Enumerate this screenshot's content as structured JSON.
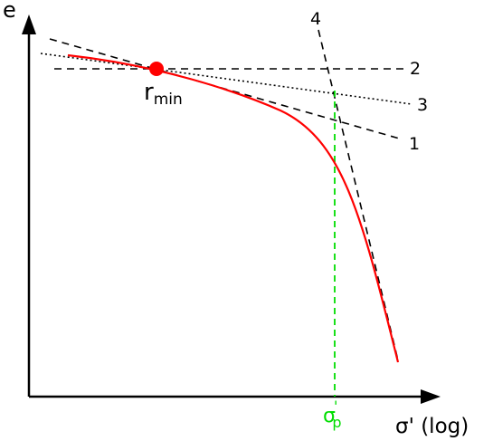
{
  "axes": {
    "y_label": "e",
    "x_label": "σ' (log)"
  },
  "point": {
    "label_main": "r",
    "label_sub": "min"
  },
  "lines": [
    {
      "id": "1",
      "label": "1",
      "style": "dashed"
    },
    {
      "id": "2",
      "label": "2",
      "style": "dashed"
    },
    {
      "id": "3",
      "label": "3",
      "style": "dotted"
    },
    {
      "id": "4",
      "label": "4",
      "style": "dashed"
    }
  ],
  "preconsolidation": {
    "label_main": "σ",
    "label_prime": "'",
    "label_sub": "p"
  },
  "colors": {
    "curve": "#ff0000",
    "point": "#ff0000",
    "guide": "#00dd00",
    "axis": "#000000"
  }
}
